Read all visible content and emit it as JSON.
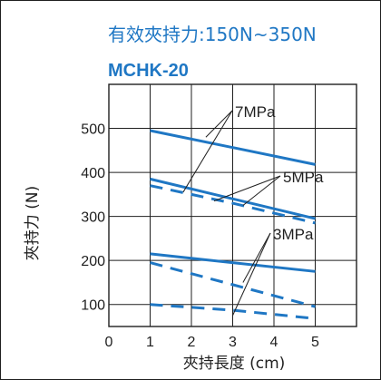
{
  "chart_data": {
    "type": "line",
    "title": "有效夾持力:150N~350N",
    "subtitle": "MCHK-20",
    "xlabel": "夾持長度 (cm)",
    "ylabel": "夾持力 (N)",
    "xlim": [
      0,
      6
    ],
    "ylim": [
      50,
      600
    ],
    "x_ticks": [
      0,
      1,
      2,
      3,
      4,
      5
    ],
    "y_ticks": [
      100,
      200,
      300,
      400,
      500
    ],
    "grid": true,
    "legend": "none",
    "series": [
      {
        "name": "7MPa",
        "style": "solid",
        "x": [
          1,
          5
        ],
        "values": [
          495,
          418
        ]
      },
      {
        "style": "dashed",
        "x": [
          1,
          3,
          5
        ],
        "values": [
          370,
          330,
          285
        ]
      },
      {
        "name": "5MPa",
        "style": "solid",
        "x": [
          1,
          5
        ],
        "values": [
          385,
          295
        ]
      },
      {
        "style": "dashed",
        "x": [
          1,
          3,
          5
        ],
        "values": [
          195,
          145,
          95
        ]
      },
      {
        "name": "3MPa",
        "style": "solid",
        "x": [
          1,
          5
        ],
        "values": [
          215,
          175
        ]
      },
      {
        "style": "dashed",
        "x": [
          1,
          3,
          5
        ],
        "values": [
          100,
          87,
          68
        ]
      }
    ],
    "annotations": [
      {
        "text": "7MPa",
        "leaders": [
          [
            2.35,
            480
          ],
          [
            1.8,
            355
          ]
        ]
      },
      {
        "text": "5MPa",
        "leaders": [
          [
            3.25,
            325
          ],
          [
            2.55,
            335
          ]
        ]
      },
      {
        "text": "3MPa",
        "leaders": [
          [
            3.25,
            150
          ],
          [
            3.0,
            75
          ]
        ]
      }
    ],
    "colors": {
      "line": "#1f77c4",
      "frame": "#1f1f1f",
      "grid": "#1f1f1f",
      "title": "#1f77c4",
      "subtitle": "#1f77c4",
      "text": "#1f1f1f"
    }
  }
}
